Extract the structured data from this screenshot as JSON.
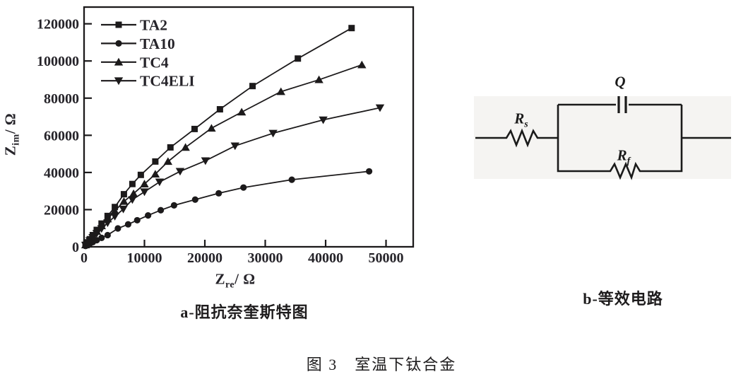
{
  "figure": {
    "caption_main": "图 3　室温下钛合金",
    "caption_a": "a-阻抗奈奎斯特图",
    "caption_b": "b-等效电路"
  },
  "chart_data": {
    "type": "line",
    "title": "",
    "xlabel": {
      "base": "Z",
      "sub": "re",
      "rest": "/ Ω"
    },
    "ylabel": {
      "base": "Z",
      "sub": "im",
      "rest": "/ Ω"
    },
    "xlim": [
      0,
      54500
    ],
    "ylim": [
      0,
      129000
    ],
    "xticks": [
      0,
      10000,
      20000,
      30000,
      40000,
      50000
    ],
    "yticks": [
      0,
      20000,
      40000,
      60000,
      80000,
      100000,
      120000
    ],
    "grid": false,
    "legend_position": "top-left-inside",
    "color": "#1c1a1b",
    "series": [
      {
        "name": "TA2",
        "marker": "square",
        "x": [
          250,
          550,
          950,
          1450,
          2100,
          2900,
          3900,
          5100,
          6600,
          8000,
          9400,
          11800,
          14300,
          18300,
          22500,
          27900,
          35400,
          44300
        ],
        "y": [
          1100,
          2400,
          4100,
          6300,
          9100,
          12500,
          16600,
          21400,
          28300,
          33800,
          38700,
          45900,
          53500,
          63400,
          74000,
          86500,
          101300,
          117700
        ]
      },
      {
        "name": "TA10",
        "marker": "circle",
        "x": [
          250,
          550,
          950,
          1450,
          2100,
          2900,
          3900,
          5600,
          7300,
          8800,
          10600,
          12700,
          14900,
          18400,
          22300,
          26400,
          34400,
          47200
        ],
        "y": [
          450,
          950,
          1650,
          2500,
          3550,
          4800,
          6300,
          9900,
          12100,
          14300,
          16900,
          19700,
          22300,
          25400,
          28800,
          31900,
          36100,
          40600
        ]
      },
      {
        "name": "TC4",
        "marker": "triangle-up",
        "x": [
          250,
          550,
          950,
          1450,
          2100,
          2900,
          3900,
          5100,
          6600,
          8200,
          10000,
          11800,
          13900,
          16800,
          21100,
          26100,
          32600,
          38900,
          46000
        ],
        "y": [
          1000,
          2200,
          3800,
          5800,
          8300,
          11300,
          15000,
          19300,
          24400,
          28600,
          33800,
          39100,
          45900,
          53500,
          63800,
          72500,
          83500,
          89900,
          97900
        ]
      },
      {
        "name": "TC4ELI",
        "marker": "triangle-down",
        "x": [
          250,
          550,
          950,
          1450,
          2100,
          2900,
          3900,
          5100,
          6500,
          8000,
          10000,
          12500,
          15900,
          20100,
          25000,
          31300,
          39600,
          49000
        ],
        "y": [
          900,
          1900,
          3300,
          5000,
          7200,
          9800,
          12900,
          16400,
          20300,
          25400,
          29600,
          34900,
          40600,
          46300,
          54300,
          61100,
          68300,
          74800
        ]
      }
    ]
  },
  "circuit": {
    "labels": {
      "q": {
        "base": "Q",
        "sub": ""
      },
      "rs": {
        "base": "R",
        "sub": "s"
      },
      "rf": {
        "base": "R",
        "sub": "f"
      }
    }
  }
}
